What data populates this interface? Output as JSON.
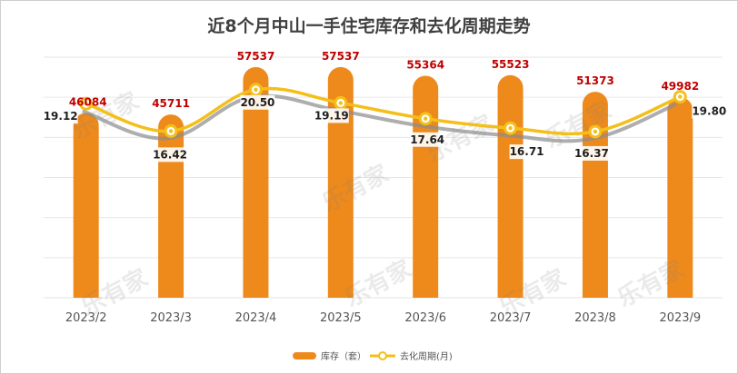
{
  "chart_data": {
    "title": "近8个月中山一手住宅库存和去化周期走势",
    "type": "bar+line",
    "categories": [
      "2023/2",
      "2023/3",
      "2023/4",
      "2023/5",
      "2023/6",
      "2023/7",
      "2023/8",
      "2023/9"
    ],
    "series": [
      {
        "name": "库存（套）",
        "type": "bar",
        "axis": "left",
        "color": "#ee8a1c",
        "values": [
          46084,
          45711,
          57537,
          57537,
          55364,
          55523,
          51373,
          49982
        ]
      },
      {
        "name": "去化周期(月)",
        "type": "line",
        "axis": "right",
        "color": "#f4bf1a",
        "values": [
          19.12,
          16.42,
          20.5,
          19.19,
          17.64,
          16.71,
          16.37,
          19.8
        ]
      }
    ],
    "ylim_left": [
      0,
      60000
    ],
    "ylim_right": [
      0,
      22
    ],
    "grid": true,
    "legend": "bottom",
    "label_color_bar": "#c00000",
    "label_color_line": "#1f1f1f"
  },
  "watermark": "乐有家"
}
